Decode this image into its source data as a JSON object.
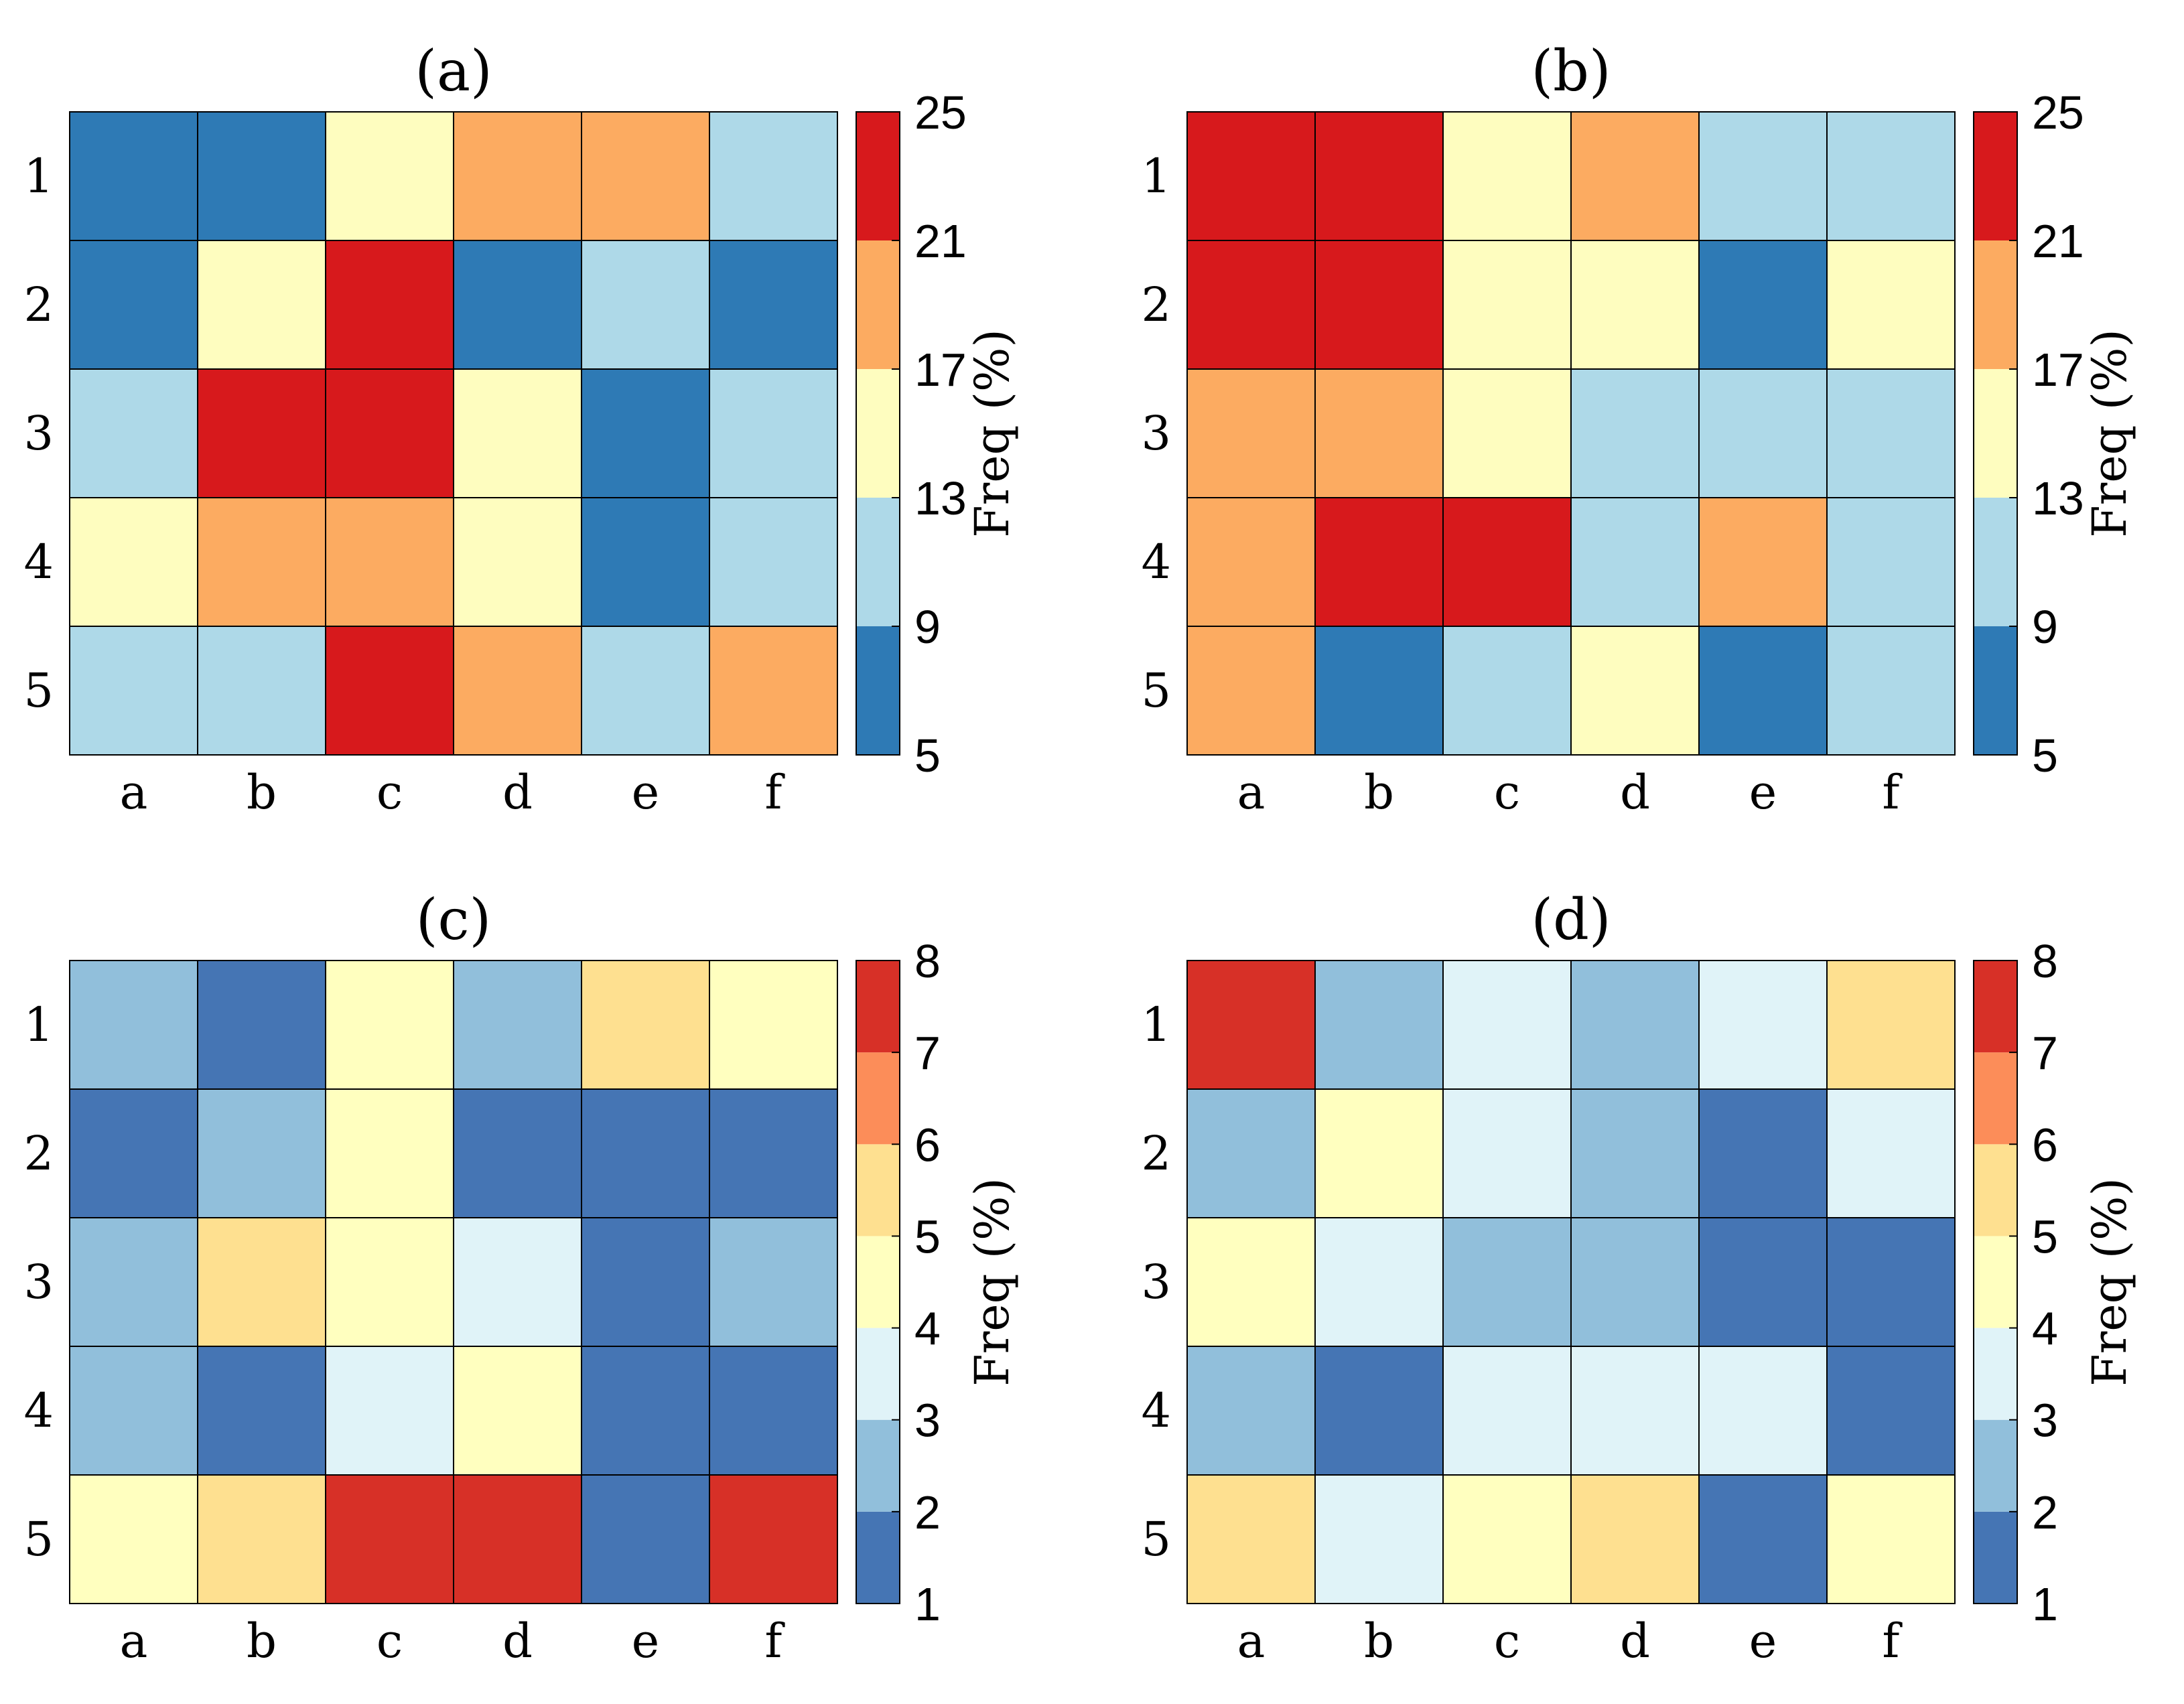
{
  "figure": {
    "row_labels": [
      "1",
      "2",
      "3",
      "4",
      "5"
    ],
    "col_labels": [
      "a",
      "b",
      "c",
      "d",
      "e",
      "f"
    ]
  },
  "chart_data": [
    {
      "type": "heatmap",
      "title": "(a)",
      "rows": [
        "1",
        "2",
        "3",
        "4",
        "5"
      ],
      "columns": [
        "a",
        "b",
        "c",
        "d",
        "e",
        "f"
      ],
      "values": [
        [
          7,
          7,
          15,
          19,
          19,
          11
        ],
        [
          7,
          15,
          23,
          7,
          11,
          7
        ],
        [
          11,
          23,
          23,
          15,
          7,
          11
        ],
        [
          15,
          19,
          19,
          15,
          7,
          11
        ],
        [
          11,
          11,
          23,
          19,
          11,
          19
        ]
      ],
      "colorbar": {
        "label": "Freq (%)",
        "ticks": [
          "5",
          "9",
          "13",
          "17",
          "21",
          "25"
        ],
        "range": [
          5,
          25
        ],
        "levels": [
          5,
          9,
          13,
          17,
          21,
          25
        ],
        "colors": [
          "#2e7ab5",
          "#aed9e8",
          "#fefdbf",
          "#fcab61",
          "#d7191c"
        ]
      }
    },
    {
      "type": "heatmap",
      "title": "(b)",
      "rows": [
        "1",
        "2",
        "3",
        "4",
        "5"
      ],
      "columns": [
        "a",
        "b",
        "c",
        "d",
        "e",
        "f"
      ],
      "values": [
        [
          23,
          23,
          15,
          19,
          11,
          11
        ],
        [
          23,
          23,
          15,
          15,
          7,
          15
        ],
        [
          19,
          19,
          15,
          11,
          11,
          11
        ],
        [
          19,
          23,
          23,
          11,
          19,
          11
        ],
        [
          19,
          7,
          11,
          15,
          7,
          11
        ]
      ],
      "colorbar": {
        "label": "Freq (%)",
        "ticks": [
          "5",
          "9",
          "13",
          "17",
          "21",
          "25"
        ],
        "range": [
          5,
          25
        ],
        "levels": [
          5,
          9,
          13,
          17,
          21,
          25
        ],
        "colors": [
          "#2e7ab5",
          "#aed9e8",
          "#fefdbf",
          "#fcab61",
          "#d7191c"
        ]
      }
    },
    {
      "type": "heatmap",
      "title": "(c)",
      "rows": [
        "1",
        "2",
        "3",
        "4",
        "5"
      ],
      "columns": [
        "a",
        "b",
        "c",
        "d",
        "e",
        "f"
      ],
      "values": [
        [
          2.5,
          1.5,
          4.5,
          2.5,
          5.5,
          4.5
        ],
        [
          1.5,
          2.5,
          4.5,
          1.5,
          1.5,
          1.5
        ],
        [
          2.5,
          5.5,
          4.5,
          3.5,
          1.5,
          2.5
        ],
        [
          2.5,
          1.5,
          3.5,
          4.5,
          1.5,
          1.5
        ],
        [
          4.5,
          5.5,
          7.5,
          7.5,
          1.5,
          7.5
        ]
      ],
      "colorbar": {
        "label": "Freq (%)",
        "ticks": [
          "1",
          "2",
          "3",
          "4",
          "5",
          "6",
          "7",
          "8"
        ],
        "range": [
          1,
          8
        ],
        "levels": [
          1,
          2,
          3,
          4,
          5,
          6,
          7,
          8
        ],
        "colors": [
          "#4575b4",
          "#91bfdb",
          "#e0f3f8",
          "#ffffbf",
          "#fee090",
          "#fc8d59",
          "#d73027"
        ]
      }
    },
    {
      "type": "heatmap",
      "title": "(d)",
      "rows": [
        "1",
        "2",
        "3",
        "4",
        "5"
      ],
      "columns": [
        "a",
        "b",
        "c",
        "d",
        "e",
        "f"
      ],
      "values": [
        [
          7.5,
          2.5,
          3.5,
          2.5,
          3.5,
          5.5
        ],
        [
          2.5,
          4.5,
          3.5,
          2.5,
          1.5,
          3.5
        ],
        [
          4.5,
          3.5,
          2.5,
          2.5,
          1.5,
          1.5
        ],
        [
          2.5,
          1.5,
          3.5,
          3.5,
          3.5,
          1.5
        ],
        [
          5.5,
          3.5,
          4.5,
          5.5,
          1.5,
          4.5
        ]
      ],
      "colorbar": {
        "label": "Freq (%)",
        "ticks": [
          "1",
          "2",
          "3",
          "4",
          "5",
          "6",
          "7",
          "8"
        ],
        "range": [
          1,
          8
        ],
        "levels": [
          1,
          2,
          3,
          4,
          5,
          6,
          7,
          8
        ],
        "colors": [
          "#4575b4",
          "#91bfdb",
          "#e0f3f8",
          "#ffffbf",
          "#fee090",
          "#fc8d59",
          "#d73027"
        ]
      }
    }
  ]
}
